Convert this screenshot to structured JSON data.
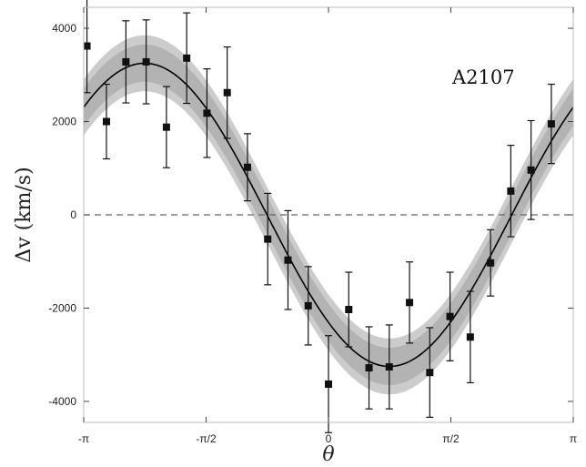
{
  "chart_data": {
    "type": "scatter",
    "title": "",
    "annotation": "A2107",
    "xlabel": "θ",
    "ylabel": "Δv (km/s)",
    "xlim": [
      -3.1416,
      3.1416
    ],
    "ylim": [
      -4450,
      4450
    ],
    "x_ticks": [
      {
        "value": -3.1416,
        "label": "-π"
      },
      {
        "value": -1.5708,
        "label": "-π/2"
      },
      {
        "value": 0,
        "label": "0"
      },
      {
        "value": 1.5708,
        "label": "π/2"
      },
      {
        "value": 3.1416,
        "label": "π"
      }
    ],
    "y_ticks": [
      {
        "value": 4000,
        "label": "4000"
      },
      {
        "value": 2000,
        "label": "2000"
      },
      {
        "value": 0,
        "label": "0"
      },
      {
        "value": -2000,
        "label": "-2000"
      },
      {
        "value": -4000,
        "label": "-4000"
      }
    ],
    "zero_line": true,
    "model": {
      "amplitude": 3250,
      "phase": -2.36,
      "outer_band_halfwidth": 600,
      "inner_band_halfwidth": 400
    },
    "points": [
      {
        "x": -3.1,
        "y": 3620,
        "err": 1000
      },
      {
        "x": -2.85,
        "y": 2000,
        "err": 800
      },
      {
        "x": -2.6,
        "y": 3280,
        "err": 880
      },
      {
        "x": -2.34,
        "y": 3280,
        "err": 900
      },
      {
        "x": -2.08,
        "y": 1880,
        "err": 870
      },
      {
        "x": -1.82,
        "y": 3360,
        "err": 970
      },
      {
        "x": -1.56,
        "y": 2180,
        "err": 950
      },
      {
        "x": -1.3,
        "y": 2620,
        "err": 980
      },
      {
        "x": -1.04,
        "y": 1020,
        "err": 720
      },
      {
        "x": -0.78,
        "y": -520,
        "err": 980
      },
      {
        "x": -0.52,
        "y": -970,
        "err": 1060
      },
      {
        "x": -0.26,
        "y": -1950,
        "err": 840
      },
      {
        "x": 0.0,
        "y": -3630,
        "err": 1040
      },
      {
        "x": 0.26,
        "y": -2030,
        "err": 800
      },
      {
        "x": 0.52,
        "y": -3280,
        "err": 880
      },
      {
        "x": 0.78,
        "y": -3260,
        "err": 900
      },
      {
        "x": 1.04,
        "y": -1880,
        "err": 870
      },
      {
        "x": 1.3,
        "y": -3380,
        "err": 960
      },
      {
        "x": 1.56,
        "y": -2180,
        "err": 950
      },
      {
        "x": 1.82,
        "y": -2620,
        "err": 980
      },
      {
        "x": 2.08,
        "y": -1030,
        "err": 710
      },
      {
        "x": 2.34,
        "y": 510,
        "err": 980
      },
      {
        "x": 2.6,
        "y": 960,
        "err": 1060
      },
      {
        "x": 2.86,
        "y": 1950,
        "err": 850
      }
    ],
    "colors": {
      "outer_band": "#cccccc",
      "inner_band": "#9e9e9e",
      "curve": "#000000",
      "points": "#111111",
      "zero_line": "#666666",
      "frame": "#bbbbbb"
    }
  }
}
